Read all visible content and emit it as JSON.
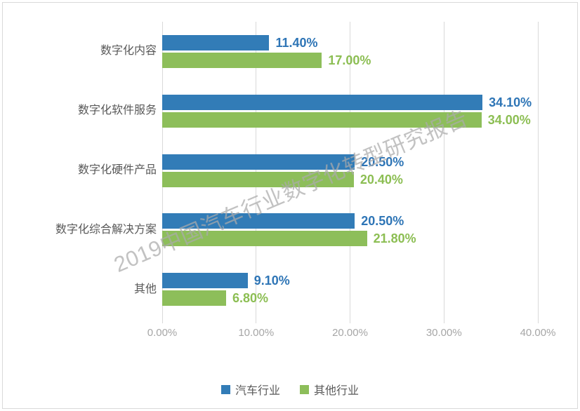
{
  "watermark_text": "2019中国汽车行业数字化转型研究报告",
  "chart_data": {
    "type": "bar",
    "orientation": "horizontal",
    "title": "",
    "categories": [
      "数字化内容",
      "数字化软件服务",
      "数字化硬件产品",
      "数字化综合解决方案",
      "其他"
    ],
    "series": [
      {
        "name": "汽车行业",
        "color": "#327CB7",
        "label_color": "#2E75B6",
        "values": [
          11.4,
          34.1,
          20.5,
          20.5,
          9.1
        ],
        "labels": [
          "11.40%",
          "34.10%",
          "20.50%",
          "20.50%",
          "9.10%"
        ]
      },
      {
        "name": "其他行业",
        "color": "#8DBE5A",
        "label_color": "#8CBE53",
        "values": [
          17.0,
          34.0,
          20.4,
          21.8,
          6.8
        ],
        "labels": [
          "17.00%",
          "34.00%",
          "20.40%",
          "21.80%",
          "6.80%"
        ]
      }
    ],
    "x_axis": {
      "min": 0,
      "max": 40,
      "ticks": [
        0,
        10,
        20,
        30,
        40
      ],
      "tick_labels": [
        "0.00%",
        "10.00%",
        "20.00%",
        "30.00%",
        "40.00%"
      ]
    },
    "grid": true,
    "legend_position": "bottom"
  },
  "colors": {
    "grid_line": "#D9D9D9",
    "axis_text": "#A6A6A6",
    "category_text": "#595959",
    "border": "#D9D9D9",
    "watermark": "#AAAAAA"
  }
}
